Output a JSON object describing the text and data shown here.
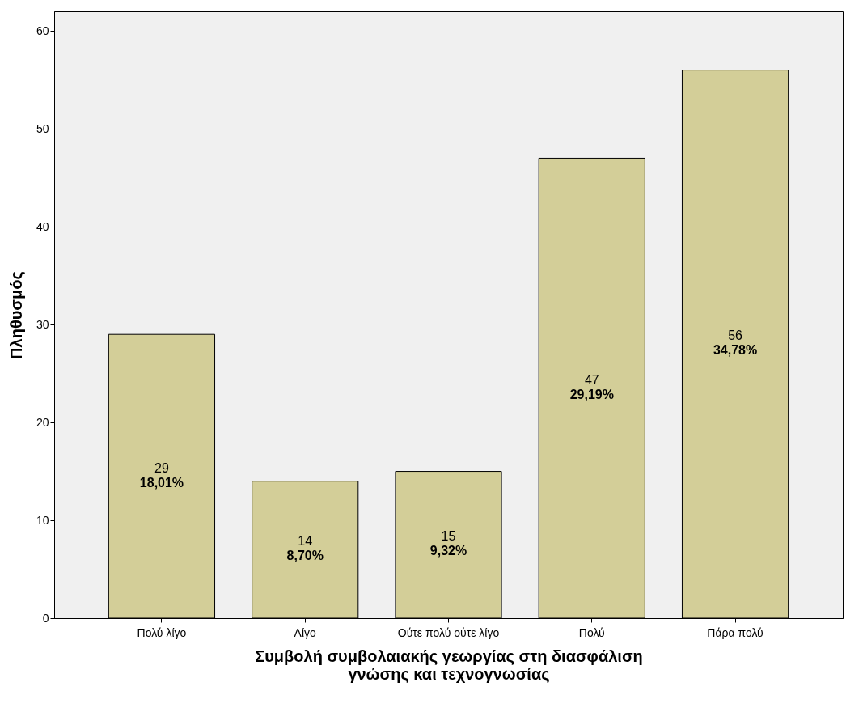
{
  "chart_data": {
    "type": "bar",
    "xlabel": "Συμβολή συμβολαιακής γεωργίας στη διασφάλιση γνώσης και τεχνογνωσίας",
    "ylabel": "Πληθυσμός",
    "categories": [
      "Πολύ λίγο",
      "Λίγο",
      "Ούτε πολύ ούτε λίγο",
      "Πολύ",
      "Πάρα πολύ"
    ],
    "values": [
      29,
      14,
      15,
      47,
      56
    ],
    "value_labels": [
      "29\n18,01%",
      "14\n8,70%",
      "15\n9,32%",
      "47\n29,19%",
      "56\n34,78%"
    ],
    "color": "#d3ce98",
    "ylim": [
      0,
      62
    ],
    "yticks": [
      0,
      10,
      20,
      30,
      40,
      50,
      60
    ],
    "grid": false
  }
}
